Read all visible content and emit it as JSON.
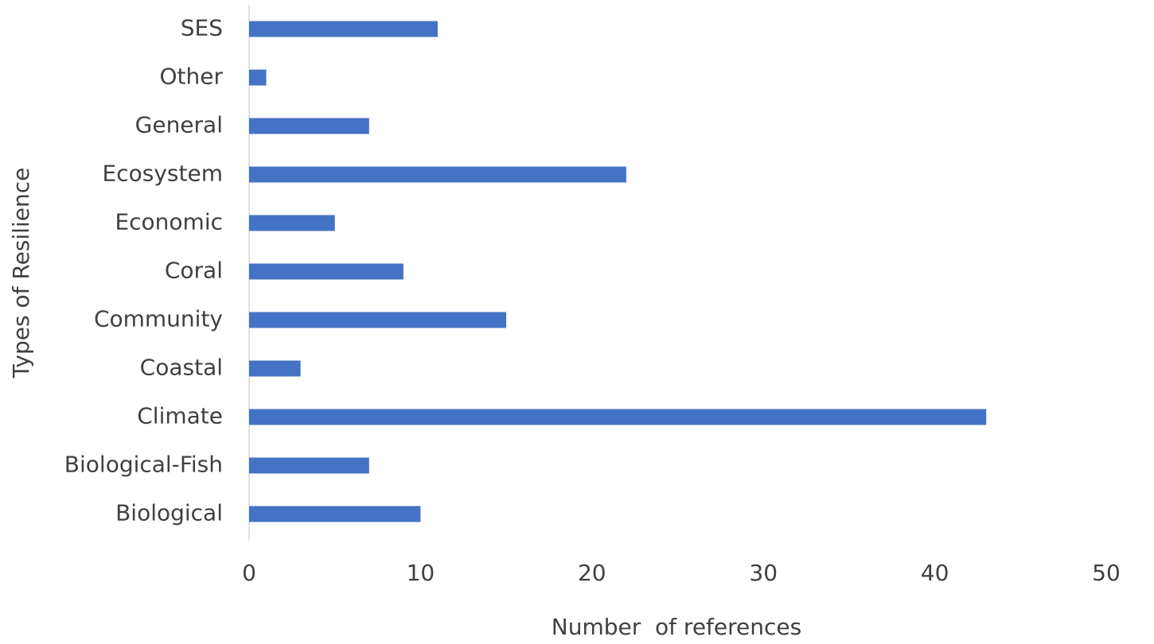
{
  "chart_data": {
    "type": "bar",
    "orientation": "horizontal",
    "x_label": "Number  of references",
    "y_label": "Types of Resilience",
    "categories": [
      "Biological",
      "Biological-Fish",
      "Climate",
      "Coastal",
      "Community",
      "Coral",
      "Economic",
      "Ecosystem",
      "General",
      "Other",
      "SES"
    ],
    "values": [
      10,
      7,
      43,
      3,
      15,
      9,
      5,
      22,
      7,
      1,
      11
    ],
    "color": "#4472c4",
    "xlim": [
      0,
      50
    ],
    "xticks": [
      0,
      10,
      20,
      30,
      40,
      50
    ]
  }
}
